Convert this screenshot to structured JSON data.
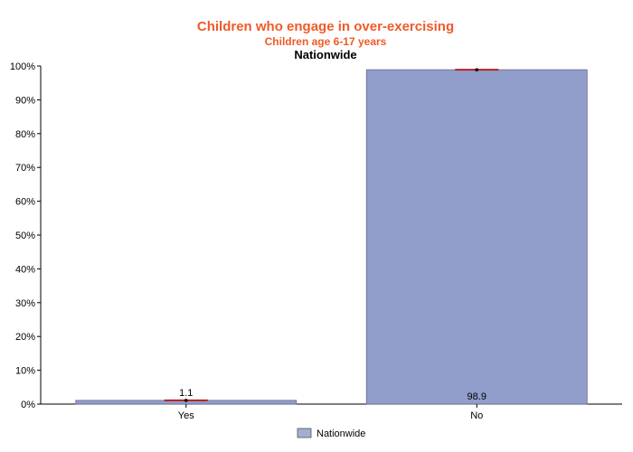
{
  "chart_data": {
    "type": "bar",
    "title": "Children who engage in over-exercising",
    "subtitle": "Children age 6-17 years",
    "subtitle2": "Nationwide",
    "categories": [
      "Yes",
      "No"
    ],
    "series": [
      {
        "name": "Nationwide",
        "values": [
          1.1,
          98.9
        ],
        "color": "#919dcb"
      }
    ],
    "data_labels": [
      "1.1",
      "98.9"
    ],
    "ylim": [
      0,
      100
    ],
    "yticks": [
      0,
      10,
      20,
      30,
      40,
      50,
      60,
      70,
      80,
      90,
      100
    ],
    "ytick_labels": [
      "0%",
      "10%",
      "20%",
      "30%",
      "40%",
      "50%",
      "60%",
      "70%",
      "80%",
      "90%",
      "100%"
    ],
    "xlabel": "",
    "ylabel": "",
    "grid": false,
    "legend_position": "bottom",
    "error_bar_color": "#b22222",
    "title_color": "#f05a28"
  }
}
